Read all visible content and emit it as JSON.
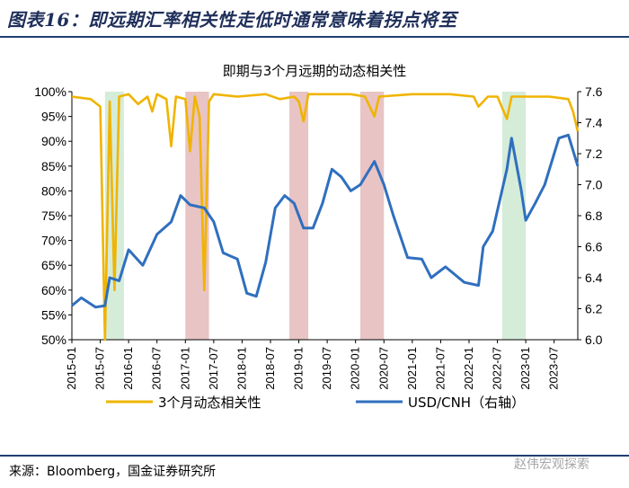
{
  "figure_title": "图表16：即远期汇率相关性走低时通常意味着拐点将至",
  "source": "来源：Bloomberg，国金证券研究所",
  "watermark": "赵伟宏观探索",
  "colors": {
    "corr": "#f0b400",
    "fx": "#2f6fbe",
    "shade_red": "#e8c4c4",
    "shade_green": "#d5ecd9",
    "rule": "#1f3f73"
  },
  "chart_data": {
    "type": "line",
    "title": "即期与3个月远期的动态相关性",
    "x_range": [
      "2015-01",
      "2023-12"
    ],
    "x_ticks": [
      "2015-01",
      "2015-07",
      "2016-01",
      "2016-07",
      "2017-01",
      "2017-07",
      "2018-01",
      "2018-07",
      "2019-01",
      "2019-07",
      "2020-01",
      "2020-07",
      "2021-01",
      "2021-07",
      "2022-01",
      "2022-07",
      "2023-01",
      "2023-07"
    ],
    "y_left": {
      "min": 0.5,
      "max": 1.0,
      "ticks": [
        "50%",
        "55%",
        "60%",
        "65%",
        "70%",
        "75%",
        "80%",
        "85%",
        "90%",
        "95%",
        "100%"
      ]
    },
    "y_right": {
      "min": 6.0,
      "max": 7.6,
      "ticks": [
        "6.0",
        "6.2",
        "6.4",
        "6.6",
        "6.8",
        "7.0",
        "7.2",
        "7.4",
        "7.6"
      ]
    },
    "shaded_periods": [
      {
        "start": "2015-08",
        "end": "2015-12",
        "color": "green"
      },
      {
        "start": "2017-01",
        "end": "2017-06",
        "color": "red"
      },
      {
        "start": "2018-11",
        "end": "2019-03",
        "color": "red"
      },
      {
        "start": "2020-02",
        "end": "2020-07",
        "color": "red"
      },
      {
        "start": "2022-08",
        "end": "2023-01",
        "color": "green"
      }
    ],
    "series": [
      {
        "name": "3个月动态相关性",
        "axis": "left",
        "points": [
          [
            "2015-01",
            0.99
          ],
          [
            "2015-05",
            0.985
          ],
          [
            "2015-07",
            0.97
          ],
          [
            "2015-08",
            0.5
          ],
          [
            "2015-09",
            0.98
          ],
          [
            "2015-10",
            0.6
          ],
          [
            "2015-11",
            0.99
          ],
          [
            "2016-01",
            0.995
          ],
          [
            "2016-03",
            0.975
          ],
          [
            "2016-05",
            0.99
          ],
          [
            "2016-06",
            0.96
          ],
          [
            "2016-07",
            0.995
          ],
          [
            "2016-09",
            0.985
          ],
          [
            "2016-10",
            0.89
          ],
          [
            "2016-11",
            0.99
          ],
          [
            "2017-01",
            0.985
          ],
          [
            "2017-02",
            0.88
          ],
          [
            "2017-03",
            0.99
          ],
          [
            "2017-04",
            0.95
          ],
          [
            "2017-05",
            0.6
          ],
          [
            "2017-06",
            0.98
          ],
          [
            "2017-07",
            0.995
          ],
          [
            "2017-12",
            0.99
          ],
          [
            "2018-06",
            0.995
          ],
          [
            "2018-09",
            0.985
          ],
          [
            "2018-12",
            0.99
          ],
          [
            "2019-01",
            0.98
          ],
          [
            "2019-02",
            0.94
          ],
          [
            "2019-03",
            0.995
          ],
          [
            "2019-12",
            0.995
          ],
          [
            "2020-03",
            0.99
          ],
          [
            "2020-05",
            0.95
          ],
          [
            "2020-06",
            0.99
          ],
          [
            "2021-01",
            0.995
          ],
          [
            "2021-09",
            0.995
          ],
          [
            "2022-02",
            0.99
          ],
          [
            "2022-03",
            0.97
          ],
          [
            "2022-05",
            0.99
          ],
          [
            "2022-07",
            0.99
          ],
          [
            "2022-09",
            0.945
          ],
          [
            "2022-10",
            0.99
          ],
          [
            "2023-06",
            0.99
          ],
          [
            "2023-10",
            0.985
          ],
          [
            "2023-11",
            0.96
          ],
          [
            "2023-12",
            0.92
          ]
        ]
      },
      {
        "name": "USD/CNH（右轴）",
        "axis": "right",
        "points": [
          [
            "2015-01",
            6.22
          ],
          [
            "2015-03",
            6.27
          ],
          [
            "2015-06",
            6.21
          ],
          [
            "2015-08",
            6.22
          ],
          [
            "2015-09",
            6.4
          ],
          [
            "2015-11",
            6.38
          ],
          [
            "2016-01",
            6.58
          ],
          [
            "2016-04",
            6.48
          ],
          [
            "2016-07",
            6.68
          ],
          [
            "2016-10",
            6.76
          ],
          [
            "2016-12",
            6.93
          ],
          [
            "2017-02",
            6.87
          ],
          [
            "2017-05",
            6.85
          ],
          [
            "2017-07",
            6.76
          ],
          [
            "2017-09",
            6.56
          ],
          [
            "2017-12",
            6.52
          ],
          [
            "2018-02",
            6.3
          ],
          [
            "2018-04",
            6.28
          ],
          [
            "2018-06",
            6.5
          ],
          [
            "2018-08",
            6.85
          ],
          [
            "2018-10",
            6.93
          ],
          [
            "2018-12",
            6.88
          ],
          [
            "2019-02",
            6.72
          ],
          [
            "2019-04",
            6.72
          ],
          [
            "2019-06",
            6.88
          ],
          [
            "2019-08",
            7.1
          ],
          [
            "2019-10",
            7.05
          ],
          [
            "2019-12",
            6.96
          ],
          [
            "2020-02",
            7.0
          ],
          [
            "2020-05",
            7.15
          ],
          [
            "2020-07",
            7.0
          ],
          [
            "2020-09",
            6.8
          ],
          [
            "2020-12",
            6.53
          ],
          [
            "2021-03",
            6.52
          ],
          [
            "2021-05",
            6.4
          ],
          [
            "2021-08",
            6.47
          ],
          [
            "2021-12",
            6.37
          ],
          [
            "2022-03",
            6.35
          ],
          [
            "2022-04",
            6.6
          ],
          [
            "2022-06",
            6.7
          ],
          [
            "2022-09",
            7.1
          ],
          [
            "2022-10",
            7.3
          ],
          [
            "2022-12",
            6.97
          ],
          [
            "2023-01",
            6.77
          ],
          [
            "2023-03",
            6.88
          ],
          [
            "2023-05",
            7.0
          ],
          [
            "2023-08",
            7.3
          ],
          [
            "2023-10",
            7.32
          ],
          [
            "2023-12",
            7.12
          ]
        ]
      }
    ],
    "legend": [
      "3个月动态相关性",
      "USD/CNH（右轴）"
    ],
    "legend_position": "bottom"
  }
}
